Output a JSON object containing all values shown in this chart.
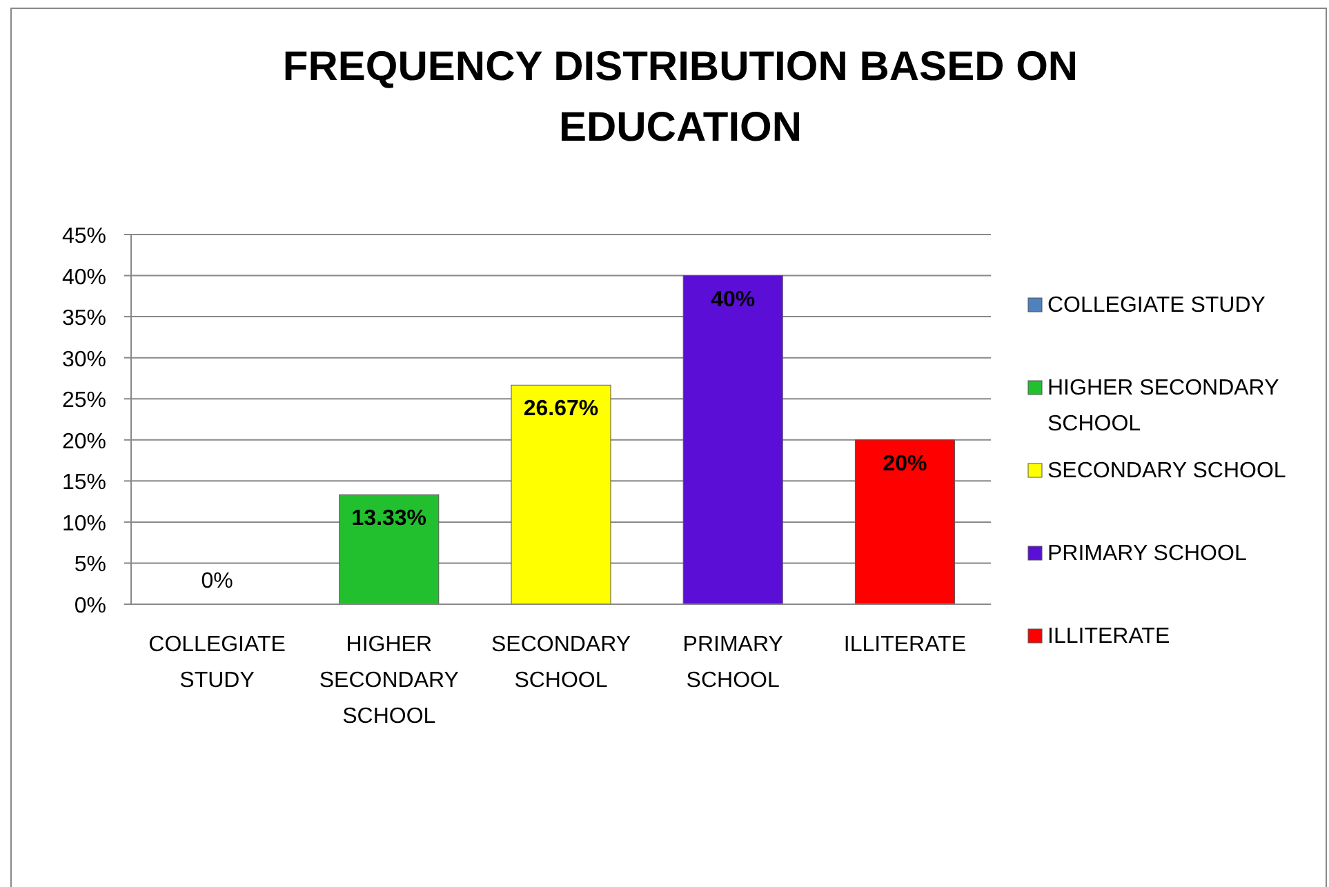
{
  "chart_data": {
    "type": "bar",
    "title": "FREQUENCY DISTRIBUTION BASED ON EDUCATION",
    "categories": [
      "COLLEGIATE STUDY",
      "HIGHER SECONDARY SCHOOL",
      "SECONDARY SCHOOL",
      "PRIMARY SCHOOL",
      "ILLITERATE"
    ],
    "series": [
      {
        "name": "COLLEGIATE STUDY",
        "color": "#4f81bd",
        "values": [
          0,
          null,
          null,
          null,
          null
        ],
        "value_labels": [
          "0%",
          null,
          null,
          null,
          null
        ]
      },
      {
        "name": "HIGHER SECONDARY SCHOOL",
        "color": "#22c02e",
        "values": [
          null,
          13.33,
          null,
          null,
          null
        ],
        "value_labels": [
          null,
          "13.33%",
          null,
          null,
          null
        ]
      },
      {
        "name": "SECONDARY SCHOOL",
        "color": "#ffff00",
        "values": [
          null,
          null,
          26.67,
          null,
          null
        ],
        "value_labels": [
          null,
          null,
          "26.67%",
          null,
          null
        ]
      },
      {
        "name": "PRIMARY SCHOOL",
        "color": "#5b0fd6",
        "values": [
          null,
          null,
          null,
          40,
          null
        ],
        "value_labels": [
          null,
          null,
          null,
          "40%",
          null
        ]
      },
      {
        "name": "ILLITERATE",
        "color": "#ff0000",
        "values": [
          null,
          null,
          null,
          null,
          20
        ],
        "value_labels": [
          null,
          null,
          null,
          null,
          "20%"
        ]
      }
    ],
    "ylim": [
      0,
      45
    ],
    "yticks": [
      {
        "value": 0,
        "label": "0%"
      },
      {
        "value": 5,
        "label": "5%"
      },
      {
        "value": 10,
        "label": "10%"
      },
      {
        "value": 15,
        "label": "15%"
      },
      {
        "value": 20,
        "label": "20%"
      },
      {
        "value": 25,
        "label": "25%"
      },
      {
        "value": 30,
        "label": "30%"
      },
      {
        "value": 35,
        "label": "35%"
      },
      {
        "value": 40,
        "label": "40%"
      },
      {
        "value": 45,
        "label": "45%"
      }
    ],
    "grid": "y",
    "legend": "right"
  }
}
